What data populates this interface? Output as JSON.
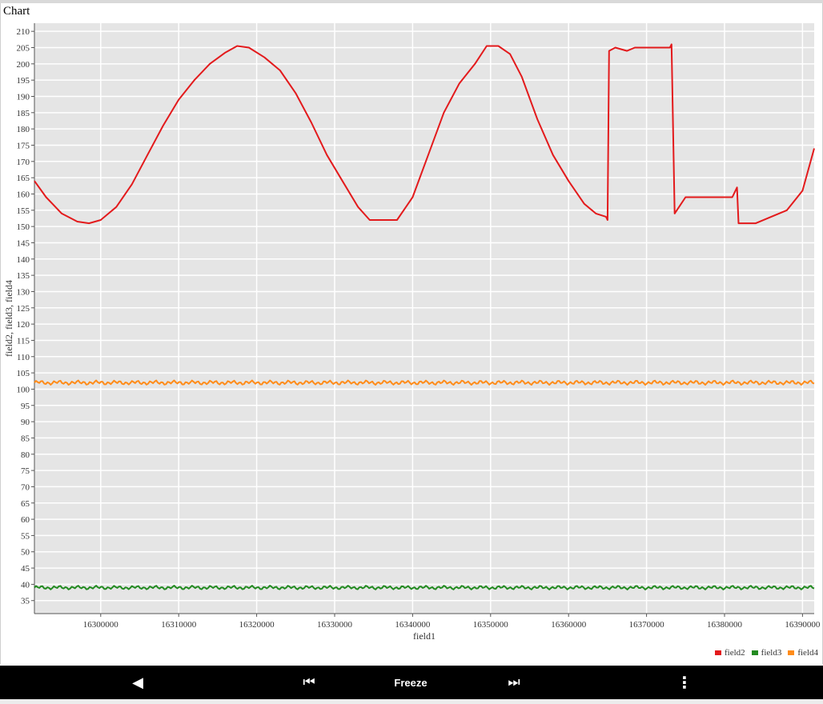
{
  "panel": {
    "title": "Chart"
  },
  "toolbar": {
    "back_label": "◀",
    "rewind_label": "⏮",
    "freeze_label": "Freeze",
    "fast_forward_label": "⏭",
    "menu_label": "⋮"
  },
  "chart_data": {
    "type": "line",
    "title": "",
    "xlabel": "field1",
    "ylabel": "field2, field3, field4",
    "xlim": [
      16291500,
      16391500
    ],
    "ylim": [
      31,
      212.5
    ],
    "xticks": [
      16300000,
      16310000,
      16320000,
      16330000,
      16340000,
      16350000,
      16360000,
      16370000,
      16380000,
      16390000
    ],
    "yticks": [
      35,
      40,
      45,
      50,
      55,
      60,
      65,
      70,
      75,
      80,
      85,
      90,
      95,
      100,
      105,
      110,
      115,
      120,
      125,
      130,
      135,
      140,
      145,
      150,
      155,
      160,
      165,
      170,
      175,
      180,
      185,
      190,
      195,
      200,
      205,
      210
    ],
    "grid": true,
    "legend": "bottom-right",
    "series": [
      {
        "name": "field2",
        "color": "#e31a1c",
        "x": [
          16291500,
          16293000,
          16295000,
          16297000,
          16298500,
          16300000,
          16302000,
          16304000,
          16306000,
          16308000,
          16310000,
          16312000,
          16314000,
          16316000,
          16317500,
          16319000,
          16321000,
          16323000,
          16325000,
          16327000,
          16329000,
          16331000,
          16333000,
          16334500,
          16336000,
          16338000,
          16340000,
          16342000,
          16344000,
          16346000,
          16348000,
          16349500,
          16351000,
          16352500,
          16354000,
          16356000,
          16358000,
          16360000,
          16362000,
          16363500,
          16364800,
          16365000,
          16365200,
          16366000,
          16367500,
          16368500,
          16370000,
          16371500,
          16373000,
          16373200,
          16373600,
          16375000,
          16377000,
          16379000,
          16381000,
          16381600,
          16381800,
          16384000,
          16386000,
          16388000,
          16390000,
          16391500
        ],
        "y": [
          164,
          159,
          154,
          151.5,
          151,
          152,
          156,
          163,
          172,
          181,
          189,
          195,
          200,
          203.5,
          205.5,
          205,
          202,
          198,
          191,
          182,
          172,
          164,
          156,
          152,
          152,
          152,
          159,
          172,
          185,
          194,
          200,
          205.5,
          205.5,
          203,
          196,
          183,
          172,
          164,
          157,
          154,
          153,
          152,
          204,
          205,
          204,
          205,
          205,
          205,
          205,
          206,
          154,
          159,
          159,
          159,
          159,
          162,
          151,
          151,
          153,
          155,
          161,
          174
        ]
      },
      {
        "name": "field3",
        "color": "#238b21",
        "x": [
          16291500,
          16391500
        ],
        "y": [
          39,
          39
        ],
        "jitter": 0.6
      },
      {
        "name": "field4",
        "color": "#ff8c1a",
        "x": [
          16291500,
          16391500
        ],
        "y": [
          102,
          102
        ],
        "jitter": 0.7
      }
    ]
  }
}
